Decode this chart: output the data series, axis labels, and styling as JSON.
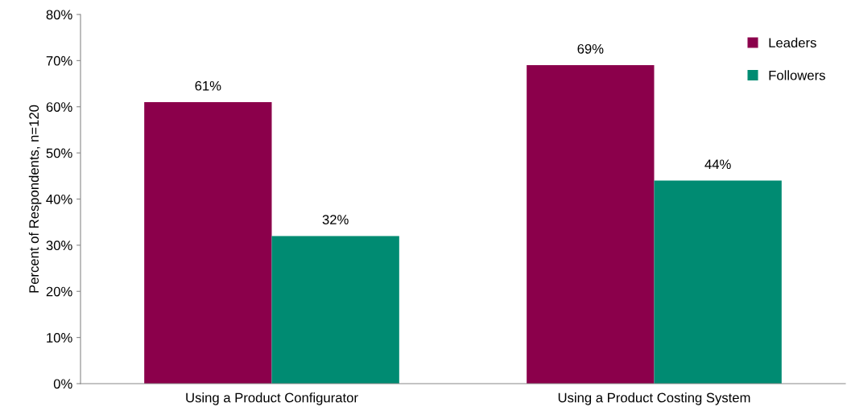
{
  "chart_data": {
    "type": "bar",
    "ylabel": "Percent of Respondents, n=120",
    "categories": [
      "Using a Product Configurator",
      "Using a Product Costing System"
    ],
    "series": [
      {
        "name": "Leaders",
        "color": "#8b004b",
        "values": [
          61,
          69
        ],
        "value_labels": [
          "61%",
          "69%"
        ]
      },
      {
        "name": "Followers",
        "color": "#008b72",
        "values": [
          32,
          44
        ],
        "value_labels": [
          "32%",
          "44%"
        ]
      }
    ],
    "ylim": [
      0,
      80
    ],
    "yticks": [
      {
        "value": 0,
        "label": "0%"
      },
      {
        "value": 10,
        "label": "10%"
      },
      {
        "value": 20,
        "label": "20%"
      },
      {
        "value": 30,
        "label": "30%"
      },
      {
        "value": 40,
        "label": "40%"
      },
      {
        "value": 50,
        "label": "50%"
      },
      {
        "value": 60,
        "label": "60%"
      },
      {
        "value": 70,
        "label": "70%"
      },
      {
        "value": 80,
        "label": "80%"
      }
    ],
    "grid": false,
    "legend": "top right"
  }
}
